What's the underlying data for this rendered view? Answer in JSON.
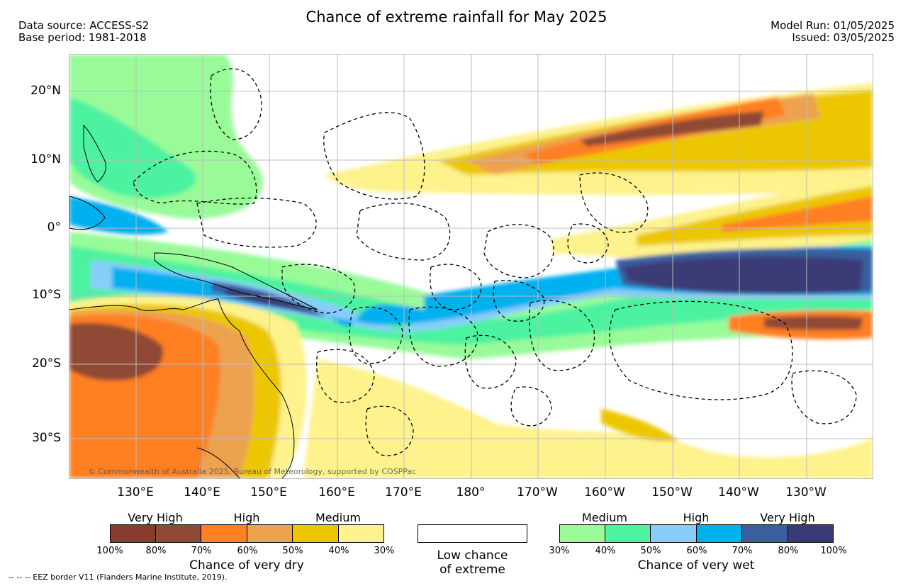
{
  "header": {
    "title": "Chance of extreme rainfall for May 2025",
    "data_source": "Data source: ACCESS-S2",
    "base_period": "Base period: 1981-2018",
    "model_run": "Model Run: 01/05/2025",
    "issued": "Issued: 03/05/2025"
  },
  "map": {
    "latitude_labels": [
      "20°N",
      "10°N",
      "0°",
      "10°S",
      "20°S",
      "30°S"
    ],
    "longitude_labels": [
      "130°E",
      "140°E",
      "150°E",
      "160°E",
      "170°E",
      "180°",
      "170°W",
      "160°W",
      "150°W",
      "140°W",
      "130°W"
    ],
    "copyright": "© Commonwealth of Australia 2025, Bureau of Meteorology, supported by COSPPac",
    "colors": {
      "very_dry_100_80": "#8b3a2f",
      "very_dry_80_70": "#8f4a35",
      "dry_70_60": "#ff7f24",
      "dry_60_50": "#eda24f",
      "dry_50_40": "#ecc700",
      "dry_40_30": "#fdf28c",
      "wet_30_40": "#98fb98",
      "wet_40_50": "#4ef2a0",
      "wet_50_60": "#87cdfa",
      "wet_60_70": "#00b0ef",
      "wet_70_80": "#395f9f",
      "wet_80_100": "#3a3a75"
    }
  },
  "legend": {
    "dry": {
      "categories": [
        "Very High",
        "High",
        "Medium"
      ],
      "percent_ticks": [
        "100%",
        "80%",
        "70%",
        "60%",
        "50%",
        "40%",
        "30%"
      ],
      "title": "Chance of very dry"
    },
    "low_chance": {
      "line1": "Low chance",
      "line2": "of extreme"
    },
    "wet": {
      "categories": [
        "Medium",
        "High",
        "Very High"
      ],
      "percent_ticks": [
        "30%",
        "40%",
        "50%",
        "60%",
        "70%",
        "80%",
        "100%"
      ],
      "title": "Chance of very wet"
    },
    "eez_note": "-- -- -- EEZ border V11 (Flanders Marine Institute, 2019)."
  }
}
